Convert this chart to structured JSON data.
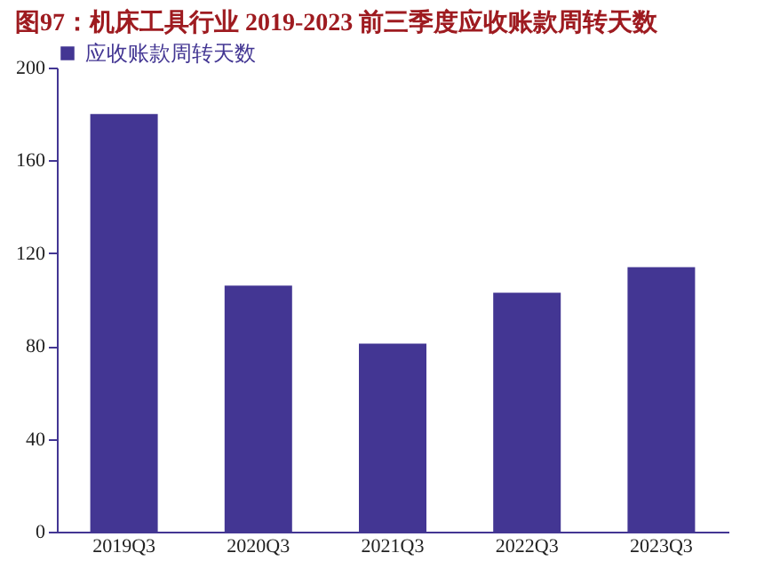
{
  "chart_data": {
    "type": "bar",
    "title": "图97：机床工具行业 2019-2023 前三季度应收账款周转天数",
    "categories": [
      "2019Q3",
      "2020Q3",
      "2021Q3",
      "2022Q3",
      "2023Q3"
    ],
    "series": [
      {
        "name": "应收账款周转天数",
        "color": "#433693",
        "values": [
          180,
          106,
          81,
          103,
          114
        ]
      }
    ],
    "ylim": [
      0,
      200
    ],
    "yticks": [
      0,
      40,
      80,
      120,
      160,
      200
    ],
    "grid": false,
    "legend": "top"
  }
}
